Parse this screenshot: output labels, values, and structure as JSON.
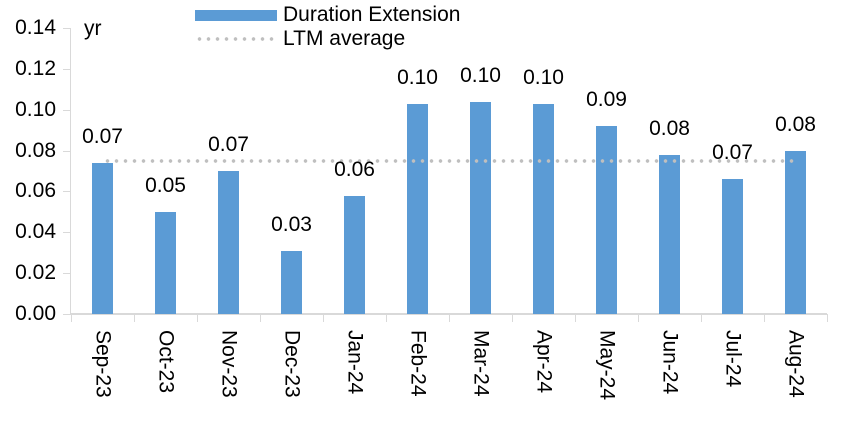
{
  "chart": {
    "unit_label": "yr",
    "legend": [
      {
        "label": "Duration Extension",
        "marker": "bar-swatch"
      },
      {
        "label": "LTM average",
        "marker": "dotted-line-swatch"
      }
    ],
    "colors": {
      "bar": "#5B9BD5",
      "ltm_dots": "#BFBFBF",
      "axis": "#D9D9D9",
      "text": "#000000",
      "background": "#FFFFFF"
    }
  },
  "chart_data": {
    "type": "bar",
    "title": "",
    "xlabel": "",
    "ylabel": "yr",
    "categories": [
      "Sep-23",
      "Oct-23",
      "Nov-23",
      "Dec-23",
      "Jan-24",
      "Feb-24",
      "Mar-24",
      "Apr-24",
      "May-24",
      "Jun-24",
      "Jul-24",
      "Aug-24"
    ],
    "series": [
      {
        "name": "Duration Extension",
        "type": "bar",
        "values": [
          0.074,
          0.05,
          0.07,
          0.031,
          0.058,
          0.103,
          0.104,
          0.103,
          0.092,
          0.078,
          0.066,
          0.08
        ],
        "labels": [
          "0.07",
          "0.05",
          "0.07",
          "0.03",
          "0.06",
          "0.10",
          "0.10",
          "0.10",
          "0.09",
          "0.08",
          "0.07",
          "0.08"
        ]
      },
      {
        "name": "LTM average",
        "type": "line",
        "style": "dotted",
        "value": 0.075
      }
    ],
    "ylim": [
      0,
      0.14
    ],
    "yticks": [
      0.0,
      0.02,
      0.04,
      0.06,
      0.08,
      0.1,
      0.12,
      0.14
    ],
    "ytick_labels": [
      "0.00",
      "0.02",
      "0.04",
      "0.06",
      "0.08",
      "0.10",
      "0.12",
      "0.14"
    ],
    "legend_position": "top-center",
    "grid": false
  }
}
